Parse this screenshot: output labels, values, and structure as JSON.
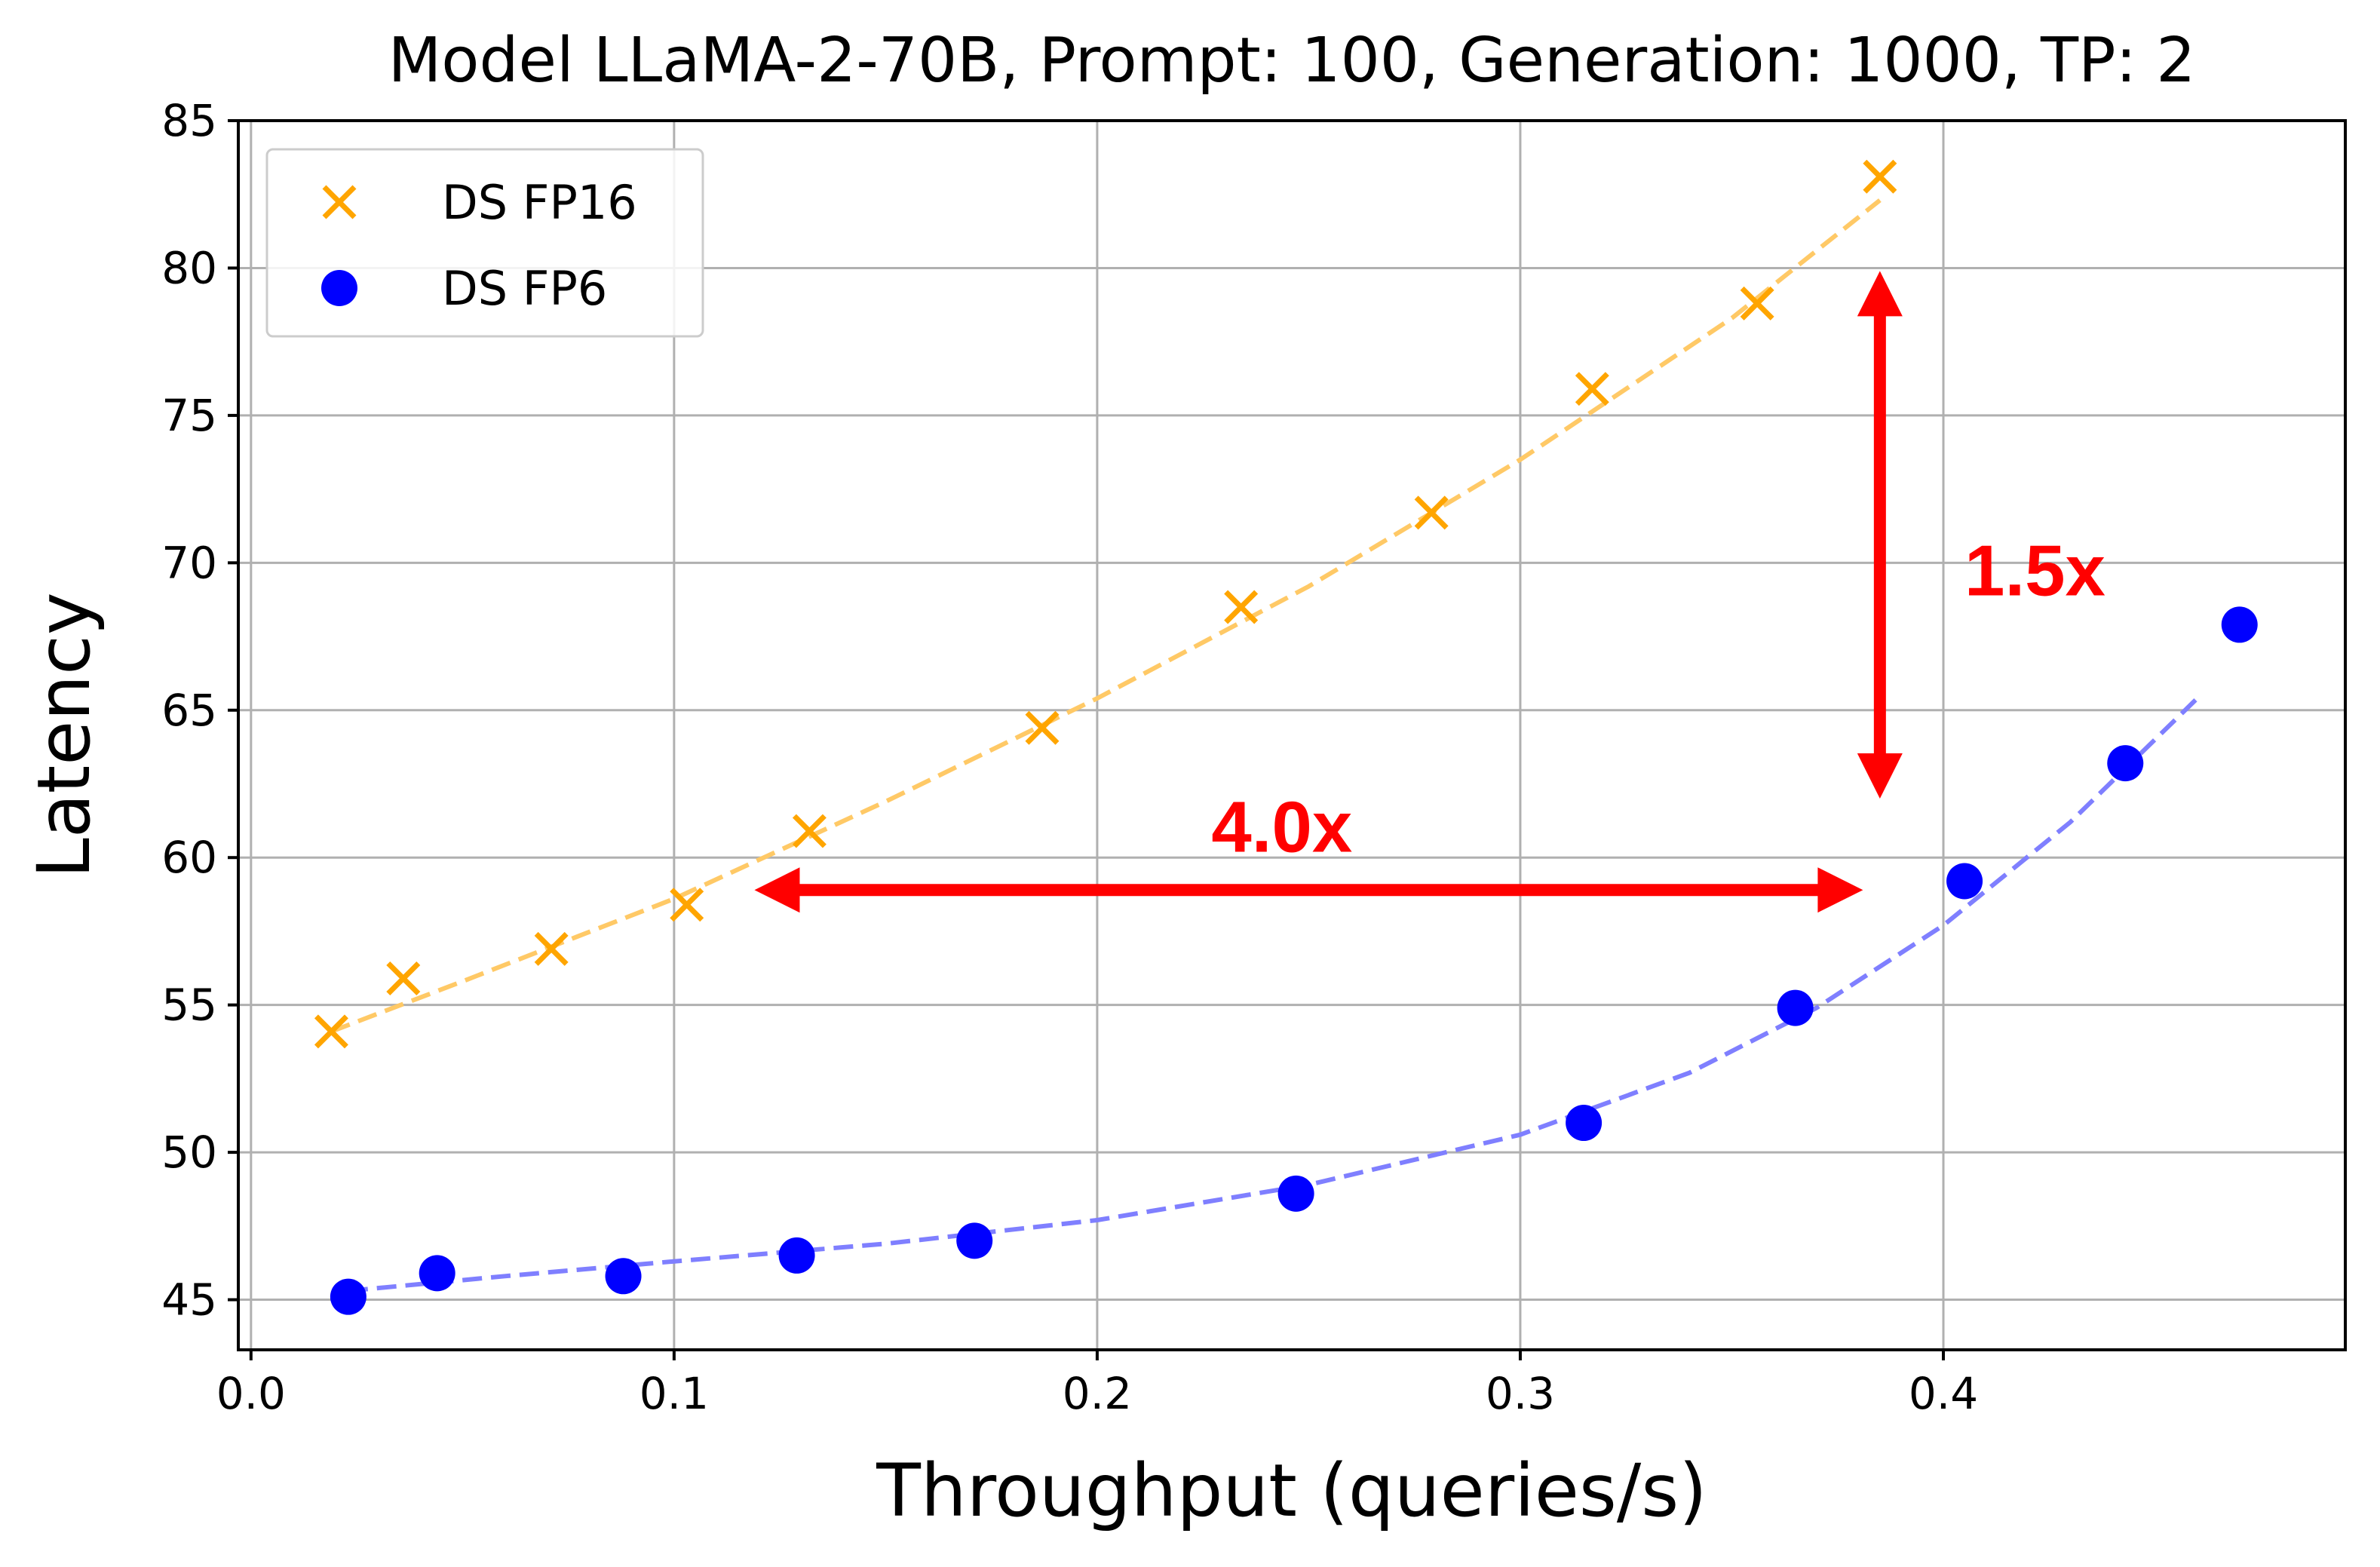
{
  "chart_data": {
    "type": "scatter",
    "title": "Model LLaMA-2-70B, Prompt: 100, Generation: 1000, TP: 2",
    "xlabel": "Throughput (queries/s)",
    "ylabel": "Latency",
    "xlim": [
      -0.003,
      0.495
    ],
    "ylim": [
      43.3,
      85.0
    ],
    "xticks": [
      0.0,
      0.1,
      0.2,
      0.3,
      0.4
    ],
    "xtick_labels": [
      "0.0",
      "0.1",
      "0.2",
      "0.3",
      "0.4"
    ],
    "yticks": [
      45,
      50,
      55,
      60,
      65,
      70,
      75,
      80,
      85
    ],
    "ytick_labels": [
      "45",
      "50",
      "55",
      "60",
      "65",
      "70",
      "75",
      "80",
      "85"
    ],
    "grid": true,
    "legend_position": "top-left",
    "series": [
      {
        "name": "DS FP16",
        "marker": "x",
        "color": "#FFA500",
        "fit_color": "#FFC966",
        "x": [
          0.019,
          0.036,
          0.071,
          0.103,
          0.132,
          0.187,
          0.234,
          0.279,
          0.317,
          0.356,
          0.385
        ],
        "y": [
          54.1,
          55.9,
          56.9,
          58.4,
          60.9,
          64.4,
          68.5,
          71.7,
          75.9,
          78.8,
          83.1
        ],
        "fit": {
          "x": [
            0.019,
            0.05,
            0.1,
            0.15,
            0.2,
            0.25,
            0.3,
            0.35,
            0.385
          ],
          "y": [
            54.1,
            55.8,
            58.6,
            61.9,
            65.4,
            69.2,
            73.5,
            78.3,
            82.3
          ]
        }
      },
      {
        "name": "DS FP6",
        "marker": "o",
        "color": "#0000FF",
        "fit_color": "#7F7FFF",
        "x": [
          0.023,
          0.044,
          0.088,
          0.129,
          0.171,
          0.247,
          0.315,
          0.365,
          0.405,
          0.443,
          0.47
        ],
        "y": [
          45.1,
          45.9,
          45.8,
          46.5,
          47.0,
          48.6,
          51.0,
          54.9,
          59.2,
          63.2,
          67.9
        ],
        "fit": {
          "x": [
            0.023,
            0.06,
            0.1,
            0.15,
            0.2,
            0.25,
            0.3,
            0.34,
            0.37,
            0.4,
            0.43,
            0.46
          ],
          "y": [
            45.3,
            45.8,
            46.3,
            46.9,
            47.7,
            48.9,
            50.6,
            52.7,
            54.9,
            57.7,
            61.2,
            65.4
          ]
        }
      }
    ],
    "annotations": [
      {
        "text": "1.5x",
        "text_x": 0.405,
        "text_y": 68.9,
        "color": "#FF0000",
        "arrow": {
          "direction": "vertical",
          "x": 0.385,
          "from": 62.0,
          "to": 79.9
        }
      },
      {
        "text": "4.0x",
        "text_x": 0.227,
        "text_y": 60.2,
        "color": "#FF0000",
        "arrow": {
          "direction": "horizontal",
          "y": 58.9,
          "from": 0.119,
          "to": 0.381
        }
      }
    ]
  }
}
